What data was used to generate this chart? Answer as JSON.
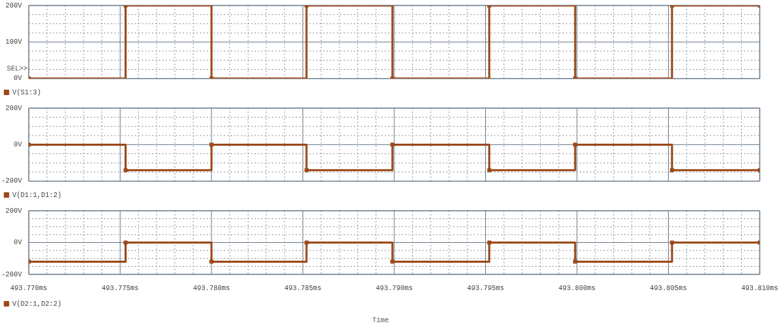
{
  "chart_data": [
    {
      "type": "step",
      "marker": "square",
      "grid": true,
      "legend": "bottom left",
      "tick_labels": "y",
      "annotations": [
        "SEL>>"
      ],
      "series": [
        {
          "name": "V(S1:3)",
          "color": "#9c4a1a",
          "x": [
            493.77,
            493.7753,
            493.78,
            493.7852,
            493.7899,
            493.7952,
            493.7999,
            493.8052,
            493.81
          ],
          "values": [
            0,
            200,
            0,
            200,
            0,
            200,
            0,
            200,
            200
          ]
        }
      ],
      "xlim": [
        493.77,
        493.81
      ],
      "xticks": [
        {
          "value": 493.77,
          "label": null
        },
        {
          "value": 493.771,
          "label": null
        },
        {
          "value": 493.772,
          "label": null
        },
        {
          "value": 493.773,
          "label": null
        },
        {
          "value": 493.774,
          "label": null
        },
        {
          "value": 493.775,
          "label": null
        },
        {
          "value": 493.776,
          "label": null
        },
        {
          "value": 493.777,
          "label": null
        },
        {
          "value": 493.778,
          "label": null
        },
        {
          "value": 493.779,
          "label": null
        },
        {
          "value": 493.78,
          "label": null
        },
        {
          "value": 493.781,
          "label": null
        },
        {
          "value": 493.782,
          "label": null
        },
        {
          "value": 493.783,
          "label": null
        },
        {
          "value": 493.784,
          "label": null
        },
        {
          "value": 493.785,
          "label": null
        },
        {
          "value": 493.786,
          "label": null
        },
        {
          "value": 493.787,
          "label": null
        },
        {
          "value": 493.788,
          "label": null
        },
        {
          "value": 493.789,
          "label": null
        },
        {
          "value": 493.79,
          "label": null
        },
        {
          "value": 493.791,
          "label": null
        },
        {
          "value": 493.792,
          "label": null
        },
        {
          "value": 493.793,
          "label": null
        },
        {
          "value": 493.794,
          "label": null
        },
        {
          "value": 493.795,
          "label": null
        },
        {
          "value": 493.796,
          "label": null
        },
        {
          "value": 493.797,
          "label": null
        },
        {
          "value": 493.798,
          "label": null
        },
        {
          "value": 493.799,
          "label": null
        },
        {
          "value": 493.8,
          "label": null
        },
        {
          "value": 493.801,
          "label": null
        },
        {
          "value": 493.802,
          "label": null
        },
        {
          "value": 493.803,
          "label": null
        },
        {
          "value": 493.804,
          "label": null
        },
        {
          "value": 493.805,
          "label": null
        },
        {
          "value": 493.806,
          "label": null
        },
        {
          "value": 493.807,
          "label": null
        },
        {
          "value": 493.808,
          "label": null
        },
        {
          "value": 493.809,
          "label": null
        },
        {
          "value": 493.81,
          "label": null
        }
      ],
      "ylim": [
        0,
        200
      ],
      "yticks": [
        {
          "value": 0,
          "label": "0V"
        },
        {
          "value": 25,
          "label": null
        },
        {
          "value": 50,
          "label": null
        },
        {
          "value": 75,
          "label": null
        },
        {
          "value": 100,
          "label": "100V"
        },
        {
          "value": 125,
          "label": null
        },
        {
          "value": 150,
          "label": null
        },
        {
          "value": 175,
          "label": null
        },
        {
          "value": 200,
          "label": "200V"
        }
      ]
    },
    {
      "type": "step",
      "marker": "square",
      "grid": true,
      "legend": "bottom left",
      "tick_labels": "y",
      "series": [
        {
          "name": "V(D1:1,D1:2)",
          "color": "#9c4a1a",
          "x": [
            493.77,
            493.7753,
            493.78,
            493.7852,
            493.7899,
            493.7952,
            493.7999,
            493.8052,
            493.81
          ],
          "values": [
            0,
            -140,
            0,
            -140,
            0,
            -140,
            0,
            -140,
            -140
          ]
        }
      ],
      "xlim": [
        493.77,
        493.81
      ],
      "xticks": [
        {
          "value": 493.77,
          "label": null
        },
        {
          "value": 493.771,
          "label": null
        },
        {
          "value": 493.772,
          "label": null
        },
        {
          "value": 493.773,
          "label": null
        },
        {
          "value": 493.774,
          "label": null
        },
        {
          "value": 493.775,
          "label": null
        },
        {
          "value": 493.776,
          "label": null
        },
        {
          "value": 493.777,
          "label": null
        },
        {
          "value": 493.778,
          "label": null
        },
        {
          "value": 493.779,
          "label": null
        },
        {
          "value": 493.78,
          "label": null
        },
        {
          "value": 493.781,
          "label": null
        },
        {
          "value": 493.782,
          "label": null
        },
        {
          "value": 493.783,
          "label": null
        },
        {
          "value": 493.784,
          "label": null
        },
        {
          "value": 493.785,
          "label": null
        },
        {
          "value": 493.786,
          "label": null
        },
        {
          "value": 493.787,
          "label": null
        },
        {
          "value": 493.788,
          "label": null
        },
        {
          "value": 493.789,
          "label": null
        },
        {
          "value": 493.79,
          "label": null
        },
        {
          "value": 493.791,
          "label": null
        },
        {
          "value": 493.792,
          "label": null
        },
        {
          "value": 493.793,
          "label": null
        },
        {
          "value": 493.794,
          "label": null
        },
        {
          "value": 493.795,
          "label": null
        },
        {
          "value": 493.796,
          "label": null
        },
        {
          "value": 493.797,
          "label": null
        },
        {
          "value": 493.798,
          "label": null
        },
        {
          "value": 493.799,
          "label": null
        },
        {
          "value": 493.8,
          "label": null
        },
        {
          "value": 493.801,
          "label": null
        },
        {
          "value": 493.802,
          "label": null
        },
        {
          "value": 493.803,
          "label": null
        },
        {
          "value": 493.804,
          "label": null
        },
        {
          "value": 493.805,
          "label": null
        },
        {
          "value": 493.806,
          "label": null
        },
        {
          "value": 493.807,
          "label": null
        },
        {
          "value": 493.808,
          "label": null
        },
        {
          "value": 493.809,
          "label": null
        },
        {
          "value": 493.81,
          "label": null
        }
      ],
      "ylim": [
        -200,
        200
      ],
      "yticks": [
        {
          "value": -200,
          "label": "-200V"
        },
        {
          "value": -150,
          "label": null
        },
        {
          "value": -100,
          "label": null
        },
        {
          "value": -50,
          "label": null
        },
        {
          "value": 0,
          "label": "0V"
        },
        {
          "value": 50,
          "label": null
        },
        {
          "value": 100,
          "label": null
        },
        {
          "value": 150,
          "label": null
        },
        {
          "value": 200,
          "label": "200V"
        }
      ]
    },
    {
      "type": "step",
      "marker": "square",
      "grid": true,
      "legend": "bottom left",
      "xlabel": "Time",
      "series": [
        {
          "name": "V(D2:1,D2:2)",
          "color": "#9c4a1a",
          "x": [
            493.77,
            493.7753,
            493.78,
            493.7852,
            493.7899,
            493.7952,
            493.7999,
            493.8052,
            493.81
          ],
          "values": [
            -120,
            0,
            -120,
            0,
            -120,
            0,
            -120,
            0,
            0
          ]
        }
      ],
      "xlim": [
        493.77,
        493.81
      ],
      "xticks": [
        {
          "value": 493.77,
          "label": "493.770ms"
        },
        {
          "value": 493.771,
          "label": null
        },
        {
          "value": 493.772,
          "label": null
        },
        {
          "value": 493.773,
          "label": null
        },
        {
          "value": 493.774,
          "label": null
        },
        {
          "value": 493.775,
          "label": "493.775ms"
        },
        {
          "value": 493.776,
          "label": null
        },
        {
          "value": 493.777,
          "label": null
        },
        {
          "value": 493.778,
          "label": null
        },
        {
          "value": 493.779,
          "label": null
        },
        {
          "value": 493.78,
          "label": "493.780ms"
        },
        {
          "value": 493.781,
          "label": null
        },
        {
          "value": 493.782,
          "label": null
        },
        {
          "value": 493.783,
          "label": null
        },
        {
          "value": 493.784,
          "label": null
        },
        {
          "value": 493.785,
          "label": "493.785ms"
        },
        {
          "value": 493.786,
          "label": null
        },
        {
          "value": 493.787,
          "label": null
        },
        {
          "value": 493.788,
          "label": null
        },
        {
          "value": 493.789,
          "label": null
        },
        {
          "value": 493.79,
          "label": "493.790ms"
        },
        {
          "value": 493.791,
          "label": null
        },
        {
          "value": 493.792,
          "label": null
        },
        {
          "value": 493.793,
          "label": null
        },
        {
          "value": 493.794,
          "label": null
        },
        {
          "value": 493.795,
          "label": "493.795ms"
        },
        {
          "value": 493.796,
          "label": null
        },
        {
          "value": 493.797,
          "label": null
        },
        {
          "value": 493.798,
          "label": null
        },
        {
          "value": 493.799,
          "label": null
        },
        {
          "value": 493.8,
          "label": "493.800ms"
        },
        {
          "value": 493.801,
          "label": null
        },
        {
          "value": 493.802,
          "label": null
        },
        {
          "value": 493.803,
          "label": null
        },
        {
          "value": 493.804,
          "label": null
        },
        {
          "value": 493.805,
          "label": "493.805ms"
        },
        {
          "value": 493.806,
          "label": null
        },
        {
          "value": 493.807,
          "label": null
        },
        {
          "value": 493.808,
          "label": null
        },
        {
          "value": 493.809,
          "label": null
        },
        {
          "value": 493.81,
          "label": "493.810ms"
        }
      ],
      "ylim": [
        -200,
        200
      ],
      "yticks": [
        {
          "value": -200,
          "label": "-200V"
        },
        {
          "value": -150,
          "label": null
        },
        {
          "value": -100,
          "label": null
        },
        {
          "value": -50,
          "label": null
        },
        {
          "value": 0,
          "label": "0V"
        },
        {
          "value": 50,
          "label": null
        },
        {
          "value": 100,
          "label": null
        },
        {
          "value": 150,
          "label": null
        },
        {
          "value": 200,
          "label": "200V"
        }
      ]
    }
  ]
}
